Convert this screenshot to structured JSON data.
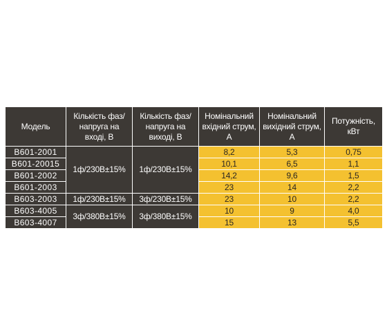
{
  "header": {
    "model": "Модель",
    "phases_in": "Кількість фаз/напруга на вході, В",
    "phases_out": "Кількість фаз/напруга на виході, В",
    "current_in": "Номінальний вхідний струм, А",
    "current_out": "Номінальний вихідний струм, А",
    "power": "Потужність, кВт"
  },
  "groups": {
    "g1_in": "1ф/230В±15%",
    "g1_out": "1ф/230В±15%",
    "g2_in": "1ф/230В±15%",
    "g2_out": "3ф/230В±15%",
    "g3_in": "3ф/380В±15%",
    "g3_out": "3ф/380В±15%"
  },
  "rows": [
    {
      "model": "B601-2001",
      "current_in": "8,2",
      "current_out": "5,3",
      "power": "0,75"
    },
    {
      "model": "B601-20015",
      "current_in": "10,1",
      "current_out": "6,5",
      "power": "1,1"
    },
    {
      "model": "B601-2002",
      "current_in": "14,2",
      "current_out": "9,6",
      "power": "1,5"
    },
    {
      "model": "B601-2003",
      "current_in": "23",
      "current_out": "14",
      "power": "2,2"
    },
    {
      "model": "B603-2003",
      "current_in": "23",
      "current_out": "10",
      "power": "2,2"
    },
    {
      "model": "B603-4005",
      "current_in": "10",
      "current_out": "9",
      "power": "4,0"
    },
    {
      "model": "B603-4007",
      "current_in": "15",
      "current_out": "13",
      "power": "5,5"
    }
  ],
  "colors": {
    "dark": "#3d3935",
    "yellow": "#f4c130",
    "border": "#ffffff"
  }
}
